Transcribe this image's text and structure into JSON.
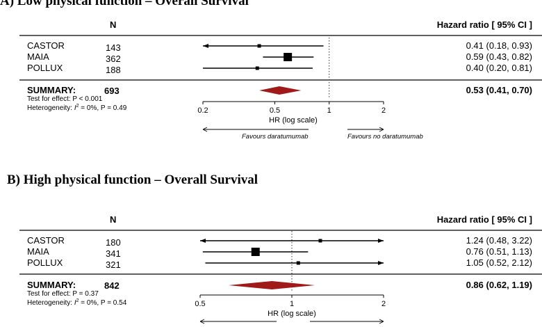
{
  "panels": [
    {
      "title": "A) Low physical function – Overall Survival",
      "n_header": "N",
      "hr_header": "Hazard ratio [ 95% CI ]",
      "summary_label": "SUMMARY:",
      "test_effect": "Test for effect: P < 0.001",
      "heterogeneity_prefix": "Heterogeneity: ",
      "heterogeneity_symbol": "I",
      "heterogeneity_suffix": " = 0%, P = 0.49",
      "axis_label": "HR (log scale)",
      "favours_left": "Favours daratumumab",
      "favours_right": "Favours no daratumumab"
    },
    {
      "title": "B) High physical function – Overall Survival",
      "n_header": "N",
      "hr_header": "Hazard ratio [ 95% CI ]",
      "summary_label": "SUMMARY:",
      "test_effect": "Test for effect: P = 0.37",
      "heterogeneity_prefix": "Heterogeneity: ",
      "heterogeneity_symbol": "I",
      "heterogeneity_suffix": " = 0%, P = 0.54",
      "axis_label": "HR (log scale)"
    }
  ],
  "chart_data": [
    {
      "type": "forest",
      "title": "A) Low physical function – Overall Survival",
      "xlabel": "HR (log scale)",
      "x_scale": "log",
      "xlim": [
        0.2,
        2
      ],
      "xticks": [
        0.2,
        0.5,
        1,
        2
      ],
      "tick_labels": [
        "0.2",
        "0.5",
        "1",
        "2"
      ],
      "reference_line": 1,
      "studies": [
        {
          "name": "CASTOR",
          "n": "143",
          "hr": 0.41,
          "lo": 0.18,
          "hi": 0.93,
          "ci_text": "0.41 (0.18, 0.93)",
          "box": "small",
          "arrow_left": true,
          "arrow_right": false
        },
        {
          "name": "MAIA",
          "n": "362",
          "hr": 0.59,
          "lo": 0.43,
          "hi": 0.82,
          "ci_text": "0.59 (0.43, 0.82)",
          "box": "large",
          "arrow_left": false,
          "arrow_right": false
        },
        {
          "name": "POLLUX",
          "n": "188",
          "hr": 0.4,
          "lo": 0.2,
          "hi": 0.81,
          "ci_text": "0.40 (0.20, 0.81)",
          "box": "small",
          "arrow_left": false,
          "arrow_right": false
        }
      ],
      "summary": {
        "n": "693",
        "hr": 0.53,
        "lo": 0.41,
        "hi": 0.7,
        "ci_text": "0.53 (0.41, 0.70)"
      },
      "colors": {
        "diamond": "#a01a1a",
        "marker": "#000000"
      }
    },
    {
      "type": "forest",
      "title": "B) High physical function – Overall Survival",
      "xlabel": "HR (log scale)",
      "x_scale": "log",
      "xlim": [
        0.5,
        2
      ],
      "xticks": [
        0.5,
        1,
        2
      ],
      "tick_labels": [
        "0.5",
        "1",
        "2"
      ],
      "reference_line": 1,
      "studies": [
        {
          "name": "CASTOR",
          "n": "180",
          "hr": 1.24,
          "lo": 0.48,
          "hi": 3.22,
          "ci_text": "1.24 (0.48, 3.22)",
          "box": "small",
          "arrow_left": true,
          "arrow_right": true
        },
        {
          "name": "MAIA",
          "n": "341",
          "hr": 0.76,
          "lo": 0.51,
          "hi": 1.13,
          "ci_text": "0.76 (0.51, 1.13)",
          "box": "large",
          "arrow_left": false,
          "arrow_right": false
        },
        {
          "name": "POLLUX",
          "n": "321",
          "hr": 1.05,
          "lo": 0.52,
          "hi": 2.12,
          "ci_text": "1.05 (0.52, 2.12)",
          "box": "small",
          "arrow_left": false,
          "arrow_right": true
        }
      ],
      "summary": {
        "n": "842",
        "hr": 0.86,
        "lo": 0.62,
        "hi": 1.19,
        "ci_text": "0.86 (0.62, 1.19)"
      },
      "colors": {
        "diamond": "#a01a1a",
        "marker": "#000000"
      }
    }
  ]
}
